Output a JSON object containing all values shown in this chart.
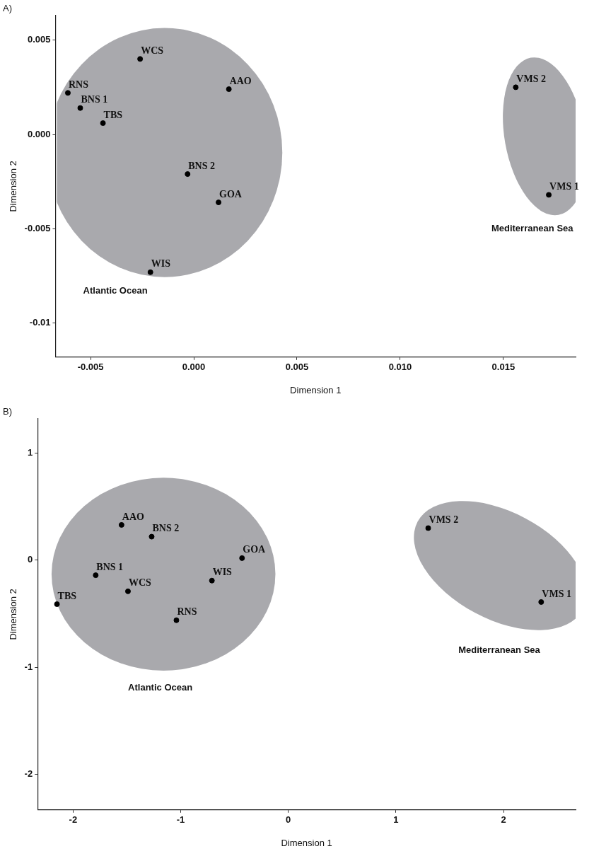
{
  "chart_data": [
    {
      "type": "scatter",
      "title": "A)",
      "xlabel": "Dimension 1",
      "ylabel": "Dimension 2",
      "marker": "circle",
      "grid": false,
      "xlim": [
        -0.0067,
        0.0185
      ],
      "ylim": [
        -0.0118,
        0.0063
      ],
      "xticks": [
        -0.005,
        {
          "value": 0,
          "label": "0.000"
        },
        0.005,
        {
          "value": 0.01,
          "label": "0.010"
        },
        0.015
      ],
      "yticks": [
        -0.01,
        -0.005,
        {
          "value": 0,
          "label": "0.000"
        },
        0.005
      ],
      "series": [
        {
          "name": "WCS",
          "color": "#000000",
          "x": [
            -0.0026
          ],
          "values": [
            0.004
          ]
        },
        {
          "name": "RNS",
          "color": "#000000",
          "x": [
            -0.0061
          ],
          "values": [
            0.0022
          ]
        },
        {
          "name": "BNS 1",
          "color": "#000000",
          "x": [
            -0.0055
          ],
          "values": [
            0.0014
          ]
        },
        {
          "name": "TBS",
          "color": "#000000",
          "x": [
            -0.0044
          ],
          "values": [
            0.0006
          ]
        },
        {
          "name": "AAO",
          "color": "#000000",
          "x": [
            0.0017
          ],
          "values": [
            0.0024
          ]
        },
        {
          "name": "BNS 2",
          "color": "#000000",
          "x": [
            -0.0003
          ],
          "values": [
            -0.0021
          ]
        },
        {
          "name": "GOA",
          "color": "#000000",
          "x": [
            0.0012
          ],
          "values": [
            -0.0036
          ]
        },
        {
          "name": "WIS",
          "color": "#000000",
          "x": [
            -0.0021
          ],
          "values": [
            -0.0073
          ]
        },
        {
          "name": "VMS 2",
          "color": "#000000",
          "x": [
            0.0156
          ],
          "values": [
            0.0025
          ]
        },
        {
          "name": "VMS 1",
          "color": "#000000",
          "x": [
            0.0172
          ],
          "values": [
            -0.0032
          ]
        }
      ],
      "annotations": [
        "Atlantic Ocean",
        "Mediterranean Sea"
      ]
    },
    {
      "type": "scatter",
      "title": "B)",
      "xlabel": "Dimension 1",
      "ylabel": "Dimension 2",
      "marker": "circle",
      "grid": false,
      "xlim": [
        -2.33,
        2.67
      ],
      "ylim": [
        -2.33,
        1.32
      ],
      "xticks": [
        -2,
        -1,
        0,
        1,
        2
      ],
      "yticks": [
        -2,
        -1,
        0,
        1
      ],
      "series": [
        {
          "name": "AAO",
          "color": "#000000",
          "x": [
            -1.55
          ],
          "values": [
            0.33
          ]
        },
        {
          "name": "BNS 2",
          "color": "#000000",
          "x": [
            -1.27
          ],
          "values": [
            0.22
          ]
        },
        {
          "name": "GOA",
          "color": "#000000",
          "x": [
            -0.43
          ],
          "values": [
            0.02
          ]
        },
        {
          "name": "BNS 1",
          "color": "#000000",
          "x": [
            -1.79
          ],
          "values": [
            -0.14
          ]
        },
        {
          "name": "WIS",
          "color": "#000000",
          "x": [
            -0.71
          ],
          "values": [
            -0.19
          ]
        },
        {
          "name": "WCS",
          "color": "#000000",
          "x": [
            -1.49
          ],
          "values": [
            -0.29
          ]
        },
        {
          "name": "TBS",
          "color": "#000000",
          "x": [
            -2.15
          ],
          "values": [
            -0.41
          ]
        },
        {
          "name": "RNS",
          "color": "#000000",
          "x": [
            -1.04
          ],
          "values": [
            -0.56
          ]
        },
        {
          "name": "VMS 2",
          "color": "#000000",
          "x": [
            1.3
          ],
          "values": [
            0.3
          ]
        },
        {
          "name": "VMS 1",
          "color": "#000000",
          "x": [
            2.35
          ],
          "values": [
            -0.39
          ]
        }
      ],
      "annotations": [
        "Atlantic Ocean",
        "Mediterranean Sea"
      ]
    }
  ]
}
